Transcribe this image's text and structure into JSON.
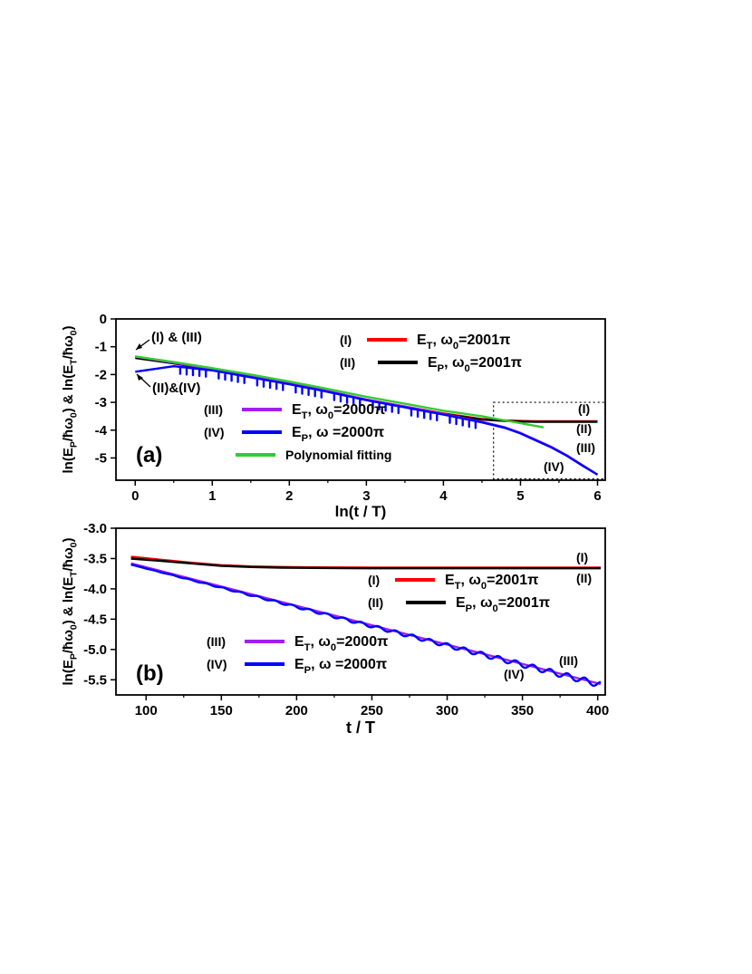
{
  "chart_data": [
    {
      "panel_label": "(a)",
      "type": "line",
      "xlabel": "ln(t / T)",
      "ylabel": "ln(E_P/ħω_0) & ln(E_T/ħω_0)",
      "xlim": [
        -0.25,
        6.1
      ],
      "ylim": [
        -5.8,
        0
      ],
      "xticks": [
        0,
        1,
        2,
        3,
        4,
        5,
        6
      ],
      "yticks": [
        0,
        -1,
        -2,
        -3,
        -4,
        -5
      ],
      "colors": {
        "red": "#ff0000",
        "black": "#000000",
        "purple": "#a020f0",
        "blue": "#0000ff",
        "green": "#33cc33"
      },
      "legend": [
        {
          "tag": "(I)",
          "symbol": "E",
          "sub": "T",
          "param": ", ω",
          "param_sub": "0",
          "value": "=2001π",
          "color": "#ff0000"
        },
        {
          "tag": "(II)",
          "symbol": "E",
          "sub": "P",
          "param": ", ω",
          "param_sub": "0",
          "value": "=2001π",
          "color": "#000000"
        },
        {
          "tag": "(III)",
          "symbol": "E",
          "sub": "T",
          "param": ", ω",
          "param_sub": "0",
          "value": "=2000π",
          "color": "#a020f0"
        },
        {
          "tag": "(IV)",
          "symbol": "E",
          "sub": "P",
          "param": ", ω",
          "param_sub": "",
          "value": " =2000π",
          "color": "#0000ff"
        },
        {
          "tag": "",
          "symbol": "Polynomial fitting",
          "sub": "",
          "param": "",
          "param_sub": "",
          "value": "",
          "color": "#33cc33"
        }
      ],
      "annotations": [
        "(I) & (III)",
        "(II)&(IV)",
        "(I)",
        "(II)",
        "(III)",
        "(IV)"
      ],
      "inset_box_x": [
        4.65,
        6.1
      ],
      "inset_box_y": [
        -5.75,
        -3.0
      ],
      "series": [
        {
          "id": "I",
          "color": "#ff0000",
          "x": [
            0,
            0.5,
            1,
            1.5,
            2,
            2.5,
            3,
            3.5,
            4,
            4.5,
            4.8,
            5.0,
            5.2,
            5.5,
            6.0
          ],
          "y": [
            -1.35,
            -1.58,
            -1.8,
            -2.05,
            -2.3,
            -2.6,
            -2.9,
            -3.15,
            -3.4,
            -3.6,
            -3.65,
            -3.67,
            -3.68,
            -3.68,
            -3.68
          ]
        },
        {
          "id": "II",
          "color": "#000000",
          "x": [
            0,
            0.5,
            1,
            1.5,
            2,
            2.5,
            3,
            3.5,
            4,
            4.5,
            4.8,
            5.0,
            5.2,
            5.5,
            6.0
          ],
          "y": [
            -1.4,
            -1.6,
            -1.82,
            -2.07,
            -2.32,
            -2.62,
            -2.92,
            -3.17,
            -3.42,
            -3.62,
            -3.67,
            -3.69,
            -3.7,
            -3.7,
            -3.7
          ]
        },
        {
          "id": "III",
          "color": "#a020f0",
          "x": [
            0,
            0.5,
            1,
            1.5,
            2,
            2.5,
            3,
            3.5,
            4,
            4.5,
            4.8,
            5.0,
            5.2,
            5.4,
            5.6,
            5.8,
            6.0
          ],
          "y": [
            -1.35,
            -1.58,
            -1.8,
            -2.05,
            -2.3,
            -2.6,
            -2.9,
            -3.15,
            -3.42,
            -3.7,
            -3.9,
            -4.1,
            -4.35,
            -4.6,
            -4.9,
            -5.25,
            -5.6
          ]
        },
        {
          "id": "IV",
          "color": "#0000ff",
          "x": [
            0,
            0.5,
            1,
            1.5,
            2,
            2.5,
            3,
            3.5,
            4,
            4.5,
            4.8,
            5.0,
            5.2,
            5.4,
            5.6,
            5.8,
            6.0
          ],
          "y": [
            -1.9,
            -1.7,
            -1.85,
            -2.1,
            -2.35,
            -2.62,
            -2.92,
            -3.18,
            -3.44,
            -3.72,
            -3.92,
            -4.12,
            -4.37,
            -4.62,
            -4.92,
            -5.27,
            -5.6
          ]
        },
        {
          "id": "fit",
          "color": "#33cc33",
          "x": [
            0,
            0.5,
            1,
            1.5,
            2,
            2.5,
            3,
            3.5,
            4,
            4.5,
            4.8,
            5.0,
            5.3
          ],
          "y": [
            -1.35,
            -1.55,
            -1.77,
            -2.0,
            -2.25,
            -2.52,
            -2.8,
            -3.05,
            -3.3,
            -3.5,
            -3.65,
            -3.75,
            -3.9
          ]
        }
      ]
    },
    {
      "panel_label": "(b)",
      "type": "line",
      "xlabel": "t / T",
      "ylabel": "ln(E_P/ħω_0) & ln(E_T/ħω_0)",
      "xlim": [
        80,
        405
      ],
      "ylim": [
        -5.75,
        -3.0
      ],
      "xticks": [
        100,
        150,
        200,
        250,
        300,
        350,
        400
      ],
      "yticks": [
        -3.0,
        -3.5,
        -4.0,
        -4.5,
        -5.0,
        -5.5
      ],
      "ytick_labels": [
        "-3.0",
        "-3.5",
        "-4.0",
        "-4.5",
        "-5.0",
        "-5.5"
      ],
      "legend": [
        {
          "tag": "(I)",
          "symbol": "E",
          "sub": "T",
          "param": ", ω",
          "param_sub": "0",
          "value": "=2001π",
          "color": "#ff0000"
        },
        {
          "tag": "(II)",
          "symbol": "E",
          "sub": "P",
          "param": ", ω",
          "param_sub": "0",
          "value": "=2001π",
          "color": "#000000"
        },
        {
          "tag": "(III)",
          "symbol": "E",
          "sub": "T",
          "param": ", ω",
          "param_sub": "0",
          "value": "=2000π",
          "color": "#a020f0"
        },
        {
          "tag": "(IV)",
          "symbol": "E",
          "sub": "P",
          "param": ", ω",
          "param_sub": "",
          "value": " =2000π",
          "color": "#0000ff"
        }
      ],
      "annotations": [
        "(I)",
        "(II)",
        "(III)",
        "(IV)"
      ],
      "series": [
        {
          "id": "I",
          "color": "#ff0000",
          "x": [
            90,
            110,
            130,
            150,
            170,
            190,
            210,
            250,
            300,
            350,
            402
          ],
          "y": [
            -3.47,
            -3.52,
            -3.57,
            -3.61,
            -3.63,
            -3.64,
            -3.645,
            -3.65,
            -3.65,
            -3.65,
            -3.65
          ]
        },
        {
          "id": "II",
          "color": "#000000",
          "x": [
            90,
            110,
            130,
            150,
            170,
            190,
            210,
            250,
            300,
            350,
            402
          ],
          "y": [
            -3.5,
            -3.54,
            -3.58,
            -3.62,
            -3.64,
            -3.65,
            -3.655,
            -3.66,
            -3.66,
            -3.66,
            -3.66
          ]
        },
        {
          "id": "III",
          "color": "#a020f0",
          "x": [
            90,
            402
          ],
          "y": [
            -3.58,
            -5.57
          ]
        },
        {
          "id": "IV",
          "color": "#0000ff",
          "x": [
            90,
            402
          ],
          "y": [
            -3.6,
            -5.58
          ],
          "oscillating": true
        }
      ]
    }
  ]
}
